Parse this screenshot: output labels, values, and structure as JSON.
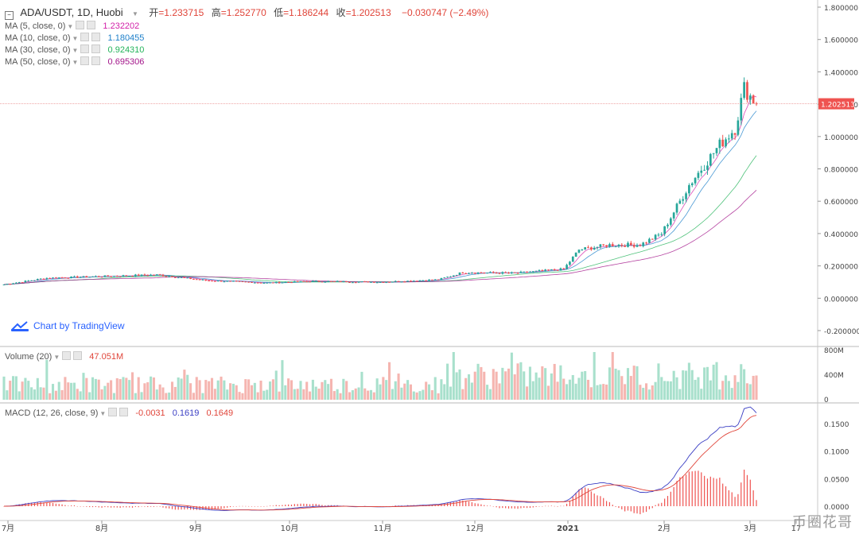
{
  "header": {
    "symbol": "ADA/USDT, 1D, Huobi",
    "open_label": "开",
    "open": "=1.233715",
    "high_label": "高",
    "high": "=1.252770",
    "low_label": "低",
    "low": "=1.186244",
    "close_label": "收",
    "close": "=1.202513",
    "change": "−0.030747 (−2.49%)"
  },
  "ma_legend": [
    {
      "label": "MA (5, close, 0)",
      "value": "1.232202",
      "color": "#d21fa8"
    },
    {
      "label": "MA (10, close, 0)",
      "value": "1.180455",
      "color": "#1d7fc9"
    },
    {
      "label": "MA (30, close, 0)",
      "value": "0.924310",
      "color": "#23b35a"
    },
    {
      "label": "MA (50, close, 0)",
      "value": "0.695306",
      "color": "#a3158a"
    }
  ],
  "volume_legend": {
    "label": "Volume (20)",
    "value": "47.051M"
  },
  "macd_legend": {
    "label": "MACD (12, 26, close, 9)",
    "hist": "-0.0031",
    "macd": "0.1619",
    "signal": "0.1649"
  },
  "branding": {
    "tradingview": "Chart by TradingView",
    "watermark": "币圈花哥"
  },
  "price_label": "1.202513",
  "colors": {
    "up": "#26a69a",
    "down": "#ef5350",
    "up_vol": "#a8e0cc",
    "down_vol": "#f5b5b0",
    "macd": "#3b3fc4",
    "signal": "#e0453a"
  },
  "chart_data": {
    "type": "candlestick",
    "title": "ADA/USDT, 1D, Huobi",
    "x_tick_labels": [
      "7月",
      "8月",
      "9月",
      "10月",
      "11月",
      "12月",
      "2021",
      "2月",
      "3月",
      "17"
    ],
    "price_axis": {
      "ticks": [
        "1.800000",
        "1.600000",
        "1.400000",
        "1.200000",
        "1.000000",
        "0.800000",
        "0.600000",
        "0.400000",
        "0.200000",
        "0.000000",
        "-0.200000"
      ],
      "ylim": [
        -0.2,
        1.8
      ]
    },
    "volume_axis": {
      "ticks": [
        "800M",
        "400M",
        "0"
      ]
    },
    "macd_axis": {
      "ticks": [
        "0.1500",
        "0.1000",
        "0.0500",
        "0.0000"
      ]
    },
    "last_close": 1.202513,
    "ohlc_anchors": [
      {
        "date": "2020-07-01",
        "close": 0.085
      },
      {
        "date": "2020-07-15",
        "close": 0.125
      },
      {
        "date": "2020-08-01",
        "close": 0.135
      },
      {
        "date": "2020-08-20",
        "close": 0.145
      },
      {
        "date": "2020-09-05",
        "close": 0.11
      },
      {
        "date": "2020-09-25",
        "close": 0.095
      },
      {
        "date": "2020-10-10",
        "close": 0.105
      },
      {
        "date": "2020-11-01",
        "close": 0.1
      },
      {
        "date": "2020-11-20",
        "close": 0.115
      },
      {
        "date": "2020-11-28",
        "close": 0.16
      },
      {
        "date": "2020-12-15",
        "close": 0.155
      },
      {
        "date": "2020-12-31",
        "close": 0.18
      },
      {
        "date": "2021-01-05",
        "close": 0.3
      },
      {
        "date": "2021-01-15",
        "close": 0.33
      },
      {
        "date": "2021-01-25",
        "close": 0.33
      },
      {
        "date": "2021-02-01",
        "close": 0.4
      },
      {
        "date": "2021-02-10",
        "close": 0.7
      },
      {
        "date": "2021-02-20",
        "close": 0.95
      },
      {
        "date": "2021-02-25",
        "close": 1.05
      },
      {
        "date": "2021-02-28",
        "close": 1.3
      },
      {
        "date": "2021-03-02",
        "close": 1.25
      },
      {
        "date": "2021-03-04",
        "close": 1.202513
      }
    ]
  }
}
